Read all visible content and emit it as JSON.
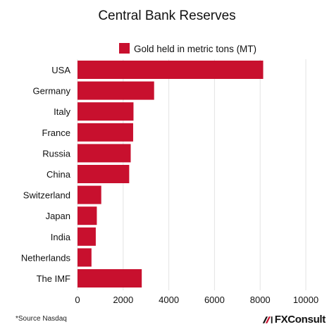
{
  "chart_data": {
    "type": "bar",
    "orientation": "horizontal",
    "title": "Central Bank Reserves",
    "legend": {
      "label": "Gold held in metric tons (MT)",
      "placement": "top-right"
    },
    "categories": [
      "USA",
      "Germany",
      "Italy",
      "France",
      "Russia",
      "China",
      "Switzerland",
      "Japan",
      "India",
      "Netherlands",
      "The IMF"
    ],
    "series": [
      {
        "name": "Gold held in metric tons (MT)",
        "values": [
          8133,
          3355,
          2452,
          2437,
          2330,
          2264,
          1040,
          846,
          800,
          612,
          2814
        ]
      }
    ],
    "xlim": [
      0,
      10000
    ],
    "xticks": [
      0,
      2000,
      4000,
      6000,
      8000,
      10000
    ],
    "grid": "vertical",
    "bar_color": "#c8102e",
    "grid_color": "#e3e3e3"
  },
  "footer": {
    "source": "*Source Nasdaq",
    "brand": "FXConsult",
    "brand_accent": "#c8102e"
  }
}
